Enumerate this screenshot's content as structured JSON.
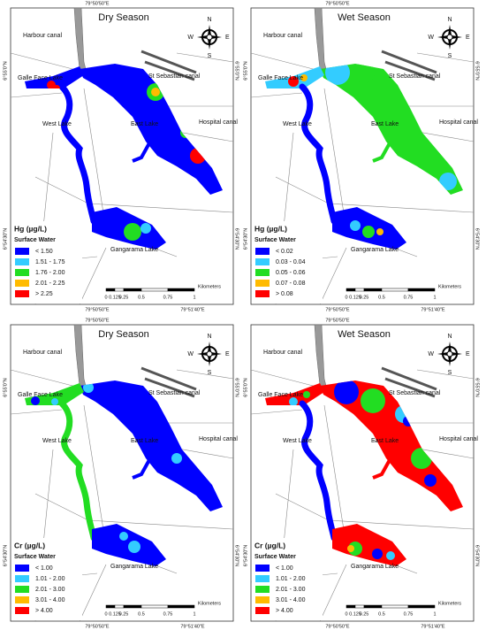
{
  "panels": [
    {
      "title": "Dry Season",
      "parameter": "Hg (µg/L)",
      "legend_title": "Surface Water",
      "classes": [
        "< 1.50",
        "1.51 - 1.75",
        "1.76 - 2.00",
        "2.01 - 2.25",
        "> 2.25"
      ]
    },
    {
      "title": "Wet Season",
      "parameter": "Hg (µg/L)",
      "legend_title": "Surface Water",
      "classes": [
        "< 0.02",
        "0.03 - 0.04",
        "0.05 - 0.06",
        "0.07 - 0.08",
        "> 0.08"
      ]
    },
    {
      "title": "Dry Season",
      "parameter": "Cr (µg/L)",
      "legend_title": "Surface Water",
      "classes": [
        "< 1.00",
        "1.01 - 2.00",
        "2.01 - 3.00",
        "3.01 - 4.00",
        "> 4.00"
      ]
    },
    {
      "title": "Wet Season",
      "parameter": "Cr (µg/L)",
      "legend_title": "Surface Water",
      "classes": [
        "< 1.00",
        "1.01 - 2.00",
        "2.01 - 3.00",
        "3.01 - 4.00",
        "> 4.00"
      ]
    }
  ],
  "class_colors": [
    "#0000ff",
    "#33ccff",
    "#22dd22",
    "#ffbb00",
    "#ff0000"
  ],
  "place_labels": {
    "harbour_canal": "Harbour canal",
    "galle_face_lake": "Galle Face Lake",
    "st_sebastian_canal": "St Sebastian canal",
    "west_lake": "West Lake",
    "east_lake": "East Lake",
    "hospital_canal": "Hospital canal",
    "gangarama_lake": "Gangarama Lake"
  },
  "compass": {
    "n": "N",
    "e": "E",
    "s": "S",
    "w": "W"
  },
  "scale": {
    "ticks": [
      "0",
      "0.125",
      "0.25",
      "0.5",
      "0.75",
      "1"
    ],
    "unit": "Kilometers"
  },
  "coordinates": {
    "lon_west": "79°50'50\"E",
    "lon_east": "79°51'40\"E",
    "lat_north": "6°55'0\"N",
    "lat_south": "6°54'30\"N"
  }
}
